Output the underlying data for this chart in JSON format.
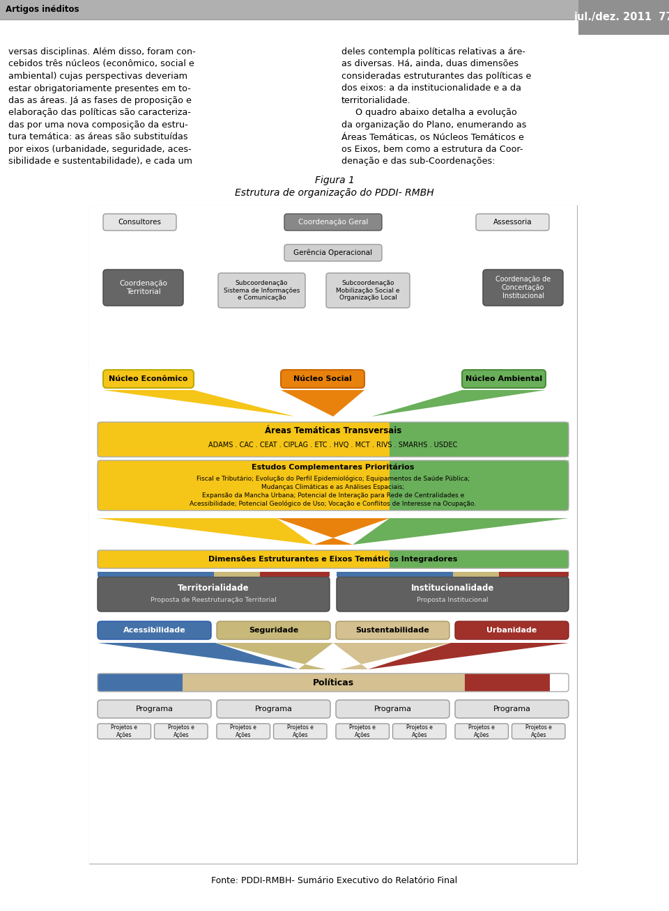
{
  "title_line1": "Figura 1",
  "title_line2": "Estrutura de organização do PDDI- RMBH",
  "source": "Fonte: PDDI-RMBH- Sumário Executivo do Relatório Final",
  "header_text_left": "Artigos inéditos",
  "header_text_right": "jul./dez. 2011  77",
  "body_text_left": [
    "versas disciplinas. Além disso, foram con-",
    "cebidos três núcleos (econômico, social e",
    "ambiental) cujas perspectivas deveriam",
    "estar obrigatoriamente presentes em to-",
    "das as áreas. Já as fases de proposição e",
    "elaboração das políticas são caracteriza-",
    "das por uma nova composição da estru-",
    "tura temática: as áreas são substituídas",
    "por eixos (urbanidade, seguridade, aces-",
    "sibilidade e sustentabilidade), e cada um"
  ],
  "body_text_right": [
    "deles contempla políticas relativas a áre-",
    "as diversas. Há, ainda, duas dimensões",
    "consideradas estruturantes das políticas e",
    "dos eixos: a da institucionalidade e a da",
    "territorialidade.",
    "     O quadro abaixo detalha a evolução",
    "da organização do Plano, enumerando as",
    "Áreas Temáticas, os Núcleos Temáticos e",
    "os Eixos, bem como a estrutura da Coor-",
    "denação e das sub-Coordenações:"
  ],
  "colors": {
    "yellow": "#F5C518",
    "orange": "#E8820C",
    "green": "#6AAF5A",
    "blue": "#4472A8",
    "tan": "#C8B97A",
    "tan2": "#D4C090",
    "red_brown": "#A0312A",
    "dark_gray": "#666666",
    "medium_gray": "#999999",
    "light_gray": "#CCCCCC",
    "box_gray": "#DDDDDD",
    "white": "#FFFFFF",
    "black": "#000000",
    "border": "#888888",
    "header_gray": "#B0B0B0",
    "header_dark": "#808080"
  }
}
